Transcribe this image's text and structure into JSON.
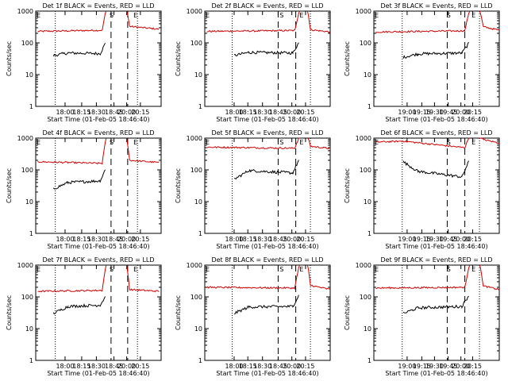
{
  "chart_data": [
    {
      "type": "line",
      "title": "Det 1f BLACK = Events, RED = LLD",
      "xlabel": "Start Time (01-Feb-05 18:46:40)",
      "ylabel": "Counts/sec",
      "yscale": "log",
      "ylim": [
        1,
        1000
      ],
      "yticks": [
        "1",
        "10",
        "100",
        "1000"
      ],
      "xticks": [
        "18:00",
        "18:15",
        "18:30",
        "18:45",
        "20:00",
        "20:15"
      ],
      "markers": [
        "E",
        "S",
        "E"
      ],
      "series": [
        {
          "name": "LLD",
          "color": "#d00000",
          "values": [
            {
              "x0": 0.02,
              "x1": 0.68,
              "v0": 230,
              "v1": 250
            },
            {
              "x0": 0.68,
              "x1": 0.72,
              "v0": 250,
              "v1": 1200
            },
            {
              "x0": 0.93,
              "x1": 0.96,
              "v0": 1200,
              "v1": 330
            },
            {
              "x0": 0.96,
              "x1": 1.26,
              "v0": 330,
              "v1": 270
            }
          ]
        },
        {
          "name": "Events",
          "color": "#000000",
          "values": [
            {
              "x0": 0.18,
              "x1": 0.33,
              "v0": 40,
              "v1": 48
            },
            {
              "x0": 0.33,
              "x1": 0.66,
              "v0": 48,
              "v1": 46
            },
            {
              "x0": 0.66,
              "x1": 0.71,
              "v0": 46,
              "v1": 95
            }
          ]
        }
      ]
    },
    {
      "type": "line",
      "title": "Det 2f BLACK = Events, RED = LLD",
      "xlabel": "Start Time (01-Feb-05 18:46:40)",
      "ylabel": "Counts/sec",
      "yscale": "log",
      "ylim": [
        1,
        1000
      ],
      "yticks": [
        "1",
        "10",
        "100",
        "1000"
      ],
      "xticks": [
        "18:00",
        "18:15",
        "18:30",
        "18:45",
        "20:00",
        "20:15"
      ],
      "markers": [
        "E",
        "S",
        "E"
      ],
      "series": [
        {
          "name": "LLD",
          "color": "#d00000",
          "values": [
            {
              "x0": 0.02,
              "x1": 0.92,
              "v0": 230,
              "v1": 245
            },
            {
              "x0": 0.92,
              "x1": 0.97,
              "v0": 245,
              "v1": 1200
            },
            {
              "x0": 1.05,
              "x1": 1.08,
              "v0": 1200,
              "v1": 260
            },
            {
              "x0": 1.08,
              "x1": 1.3,
              "v0": 260,
              "v1": 220
            }
          ]
        },
        {
          "name": "Events",
          "color": "#000000",
          "values": [
            {
              "x0": 0.3,
              "x1": 0.45,
              "v0": 40,
              "v1": 50
            },
            {
              "x0": 0.45,
              "x1": 0.9,
              "v0": 50,
              "v1": 48
            },
            {
              "x0": 0.9,
              "x1": 0.96,
              "v0": 48,
              "v1": 100
            }
          ]
        }
      ]
    },
    {
      "type": "line",
      "title": "Det 3f BLACK = Events, RED = LLD",
      "xlabel": "Start Time (01-Feb-05 18:46:40)",
      "ylabel": "Counts/sec",
      "yscale": "log",
      "ylim": [
        1,
        1000
      ],
      "yticks": [
        "1",
        "10",
        "100",
        "1000"
      ],
      "xticks": [
        "19:00",
        "19:15",
        "19:30",
        "19:45",
        "20:00",
        "20:15"
      ],
      "markers": [
        "E",
        "S",
        "E"
      ],
      "series": [
        {
          "name": "LLD",
          "color": "#d00000",
          "values": [
            {
              "x0": 0.02,
              "x1": 0.93,
              "v0": 220,
              "v1": 240
            },
            {
              "x0": 0.93,
              "x1": 0.98,
              "v0": 240,
              "v1": 1200
            },
            {
              "x0": 1.08,
              "x1": 1.12,
              "v0": 1200,
              "v1": 320
            },
            {
              "x0": 1.12,
              "x1": 1.32,
              "v0": 320,
              "v1": 250
            }
          ]
        },
        {
          "name": "Events",
          "color": "#000000",
          "values": [
            {
              "x0": 0.3,
              "x1": 0.45,
              "v0": 35,
              "v1": 45
            },
            {
              "x0": 0.45,
              "x1": 0.9,
              "v0": 45,
              "v1": 48
            },
            {
              "x0": 0.9,
              "x1": 0.97,
              "v0": 48,
              "v1": 95
            }
          ]
        }
      ]
    },
    {
      "type": "line",
      "title": "Det 4f BLACK = Events, RED = LLD",
      "xlabel": "Start Time (01-Feb-05 18:46:40)",
      "ylabel": "Counts/sec",
      "yscale": "log",
      "ylim": [
        1,
        1000
      ],
      "yticks": [
        "1",
        "10",
        "100",
        "1000"
      ],
      "xticks": [
        "18:00",
        "18:15",
        "18:30",
        "18:45",
        "20:00",
        "20:15"
      ],
      "markers": [
        "E",
        "S",
        "E"
      ],
      "series": [
        {
          "name": "LLD",
          "color": "#d00000",
          "values": [
            {
              "x0": 0.02,
              "x1": 0.68,
              "v0": 180,
              "v1": 160
            },
            {
              "x0": 0.68,
              "x1": 0.72,
              "v0": 160,
              "v1": 1200
            },
            {
              "x0": 0.93,
              "x1": 0.96,
              "v0": 1200,
              "v1": 200
            },
            {
              "x0": 0.96,
              "x1": 1.26,
              "v0": 200,
              "v1": 170
            }
          ]
        },
        {
          "name": "Events",
          "color": "#000000",
          "values": [
            {
              "x0": 0.18,
              "x1": 0.33,
              "v0": 25,
              "v1": 40
            },
            {
              "x0": 0.33,
              "x1": 0.66,
              "v0": 40,
              "v1": 45
            },
            {
              "x0": 0.66,
              "x1": 0.71,
              "v0": 45,
              "v1": 100
            }
          ]
        }
      ]
    },
    {
      "type": "line",
      "title": "Det 5f BLACK = Events, RED = LLD",
      "xlabel": "Start Time (01-Feb-05 18:46:40)",
      "ylabel": "Counts/sec",
      "yscale": "log",
      "ylim": [
        1,
        1000
      ],
      "yticks": [
        "1",
        "10",
        "100",
        "1000"
      ],
      "xticks": [
        "18:00",
        "18:15",
        "18:30",
        "18:45",
        "20:00",
        "20:15"
      ],
      "markers": [
        "E",
        "S",
        "E"
      ],
      "series": [
        {
          "name": "LLD",
          "color": "#d00000",
          "values": [
            {
              "x0": 0.02,
              "x1": 0.92,
              "v0": 520,
              "v1": 480
            },
            {
              "x0": 0.92,
              "x1": 0.97,
              "v0": 480,
              "v1": 1200
            },
            {
              "x0": 1.05,
              "x1": 1.08,
              "v0": 1200,
              "v1": 550
            },
            {
              "x0": 1.08,
              "x1": 1.3,
              "v0": 550,
              "v1": 470
            }
          ]
        },
        {
          "name": "Events",
          "color": "#000000",
          "values": [
            {
              "x0": 0.3,
              "x1": 0.45,
              "v0": 50,
              "v1": 95
            },
            {
              "x0": 0.45,
              "x1": 0.9,
              "v0": 95,
              "v1": 80
            },
            {
              "x0": 0.9,
              "x1": 0.96,
              "v0": 80,
              "v1": 200
            }
          ]
        }
      ]
    },
    {
      "type": "line",
      "title": "Det 6f BLACK = Events, RED = LLD",
      "xlabel": "Start Time (01-Feb-05 18:46:40)",
      "ylabel": "Counts/sec",
      "yscale": "log",
      "ylim": [
        1,
        1000
      ],
      "yticks": [
        "1",
        "10",
        "100",
        "1000"
      ],
      "xticks": [
        "19:00",
        "19:15",
        "19:30",
        "19:45",
        "20:00",
        "20:15"
      ],
      "markers": [
        "E",
        "S",
        "E"
      ],
      "series": [
        {
          "name": "LLD",
          "color": "#d00000",
          "values": [
            {
              "x0": 0.02,
              "x1": 0.3,
              "v0": 750,
              "v1": 800
            },
            {
              "x0": 0.3,
              "x1": 0.93,
              "v0": 800,
              "v1": 500
            },
            {
              "x0": 0.93,
              "x1": 0.98,
              "v0": 500,
              "v1": 1200
            },
            {
              "x0": 1.08,
              "x1": 1.12,
              "v0": 1200,
              "v1": 900
            },
            {
              "x0": 1.12,
              "x1": 1.32,
              "v0": 900,
              "v1": 700
            }
          ]
        },
        {
          "name": "Events",
          "color": "#000000",
          "values": [
            {
              "x0": 0.3,
              "x1": 0.45,
              "v0": 180,
              "v1": 90
            },
            {
              "x0": 0.45,
              "x1": 0.9,
              "v0": 90,
              "v1": 60
            },
            {
              "x0": 0.9,
              "x1": 0.97,
              "v0": 60,
              "v1": 180
            }
          ]
        }
      ]
    },
    {
      "type": "line",
      "title": "Det 7f BLACK = Events, RED = LLD",
      "xlabel": "Start Time (01-Feb-05 18:46:40)",
      "ylabel": "Counts/sec",
      "yscale": "log",
      "ylim": [
        1,
        1000
      ],
      "yticks": [
        "1",
        "10",
        "100",
        "1000"
      ],
      "xticks": [
        "18:00",
        "18:15",
        "18:30",
        "18:45",
        "20:00",
        "20:15"
      ],
      "markers": [
        "E",
        "S",
        "E"
      ],
      "series": [
        {
          "name": "LLD",
          "color": "#d00000",
          "values": [
            {
              "x0": 0.02,
              "x1": 0.68,
              "v0": 150,
              "v1": 160
            },
            {
              "x0": 0.68,
              "x1": 0.72,
              "v0": 160,
              "v1": 1200
            },
            {
              "x0": 0.93,
              "x1": 0.96,
              "v0": 1200,
              "v1": 170
            },
            {
              "x0": 0.96,
              "x1": 1.26,
              "v0": 170,
              "v1": 150
            }
          ]
        },
        {
          "name": "Events",
          "color": "#000000",
          "values": [
            {
              "x0": 0.18,
              "x1": 0.33,
              "v0": 30,
              "v1": 50
            },
            {
              "x0": 0.33,
              "x1": 0.66,
              "v0": 50,
              "v1": 55
            },
            {
              "x0": 0.66,
              "x1": 0.71,
              "v0": 55,
              "v1": 100
            }
          ]
        }
      ]
    },
    {
      "type": "line",
      "title": "Det 8f BLACK = Events, RED = LLD",
      "xlabel": "Start Time (01-Feb-05 18:46:40)",
      "ylabel": "Counts/sec",
      "yscale": "log",
      "ylim": [
        1,
        1000
      ],
      "yticks": [
        "1",
        "10",
        "100",
        "1000"
      ],
      "xticks": [
        "18:00",
        "18:15",
        "18:30",
        "18:45",
        "20:00",
        "20:15"
      ],
      "markers": [
        "E",
        "S",
        "E"
      ],
      "series": [
        {
          "name": "LLD",
          "color": "#d00000",
          "values": [
            {
              "x0": 0.02,
              "x1": 0.92,
              "v0": 200,
              "v1": 190
            },
            {
              "x0": 0.92,
              "x1": 0.97,
              "v0": 190,
              "v1": 1200
            },
            {
              "x0": 1.05,
              "x1": 1.08,
              "v0": 1200,
              "v1": 230
            },
            {
              "x0": 1.08,
              "x1": 1.3,
              "v0": 230,
              "v1": 170
            }
          ]
        },
        {
          "name": "Events",
          "color": "#000000",
          "values": [
            {
              "x0": 0.3,
              "x1": 0.45,
              "v0": 30,
              "v1": 48
            },
            {
              "x0": 0.45,
              "x1": 0.9,
              "v0": 48,
              "v1": 50
            },
            {
              "x0": 0.9,
              "x1": 0.96,
              "v0": 50,
              "v1": 110
            }
          ]
        }
      ]
    },
    {
      "type": "line",
      "title": "Det 9f BLACK = Events, RED = LLD",
      "xlabel": "Start Time (01-Feb-05 18:46:40)",
      "ylabel": "Counts/sec",
      "yscale": "log",
      "ylim": [
        1,
        1000
      ],
      "yticks": [
        "1",
        "10",
        "100",
        "1000"
      ],
      "xticks": [
        "19:00",
        "19:15",
        "19:30",
        "19:45",
        "20:00",
        "20:15"
      ],
      "markers": [
        "E",
        "S",
        "E"
      ],
      "series": [
        {
          "name": "LLD",
          "color": "#d00000",
          "values": [
            {
              "x0": 0.02,
              "x1": 0.93,
              "v0": 190,
              "v1": 200
            },
            {
              "x0": 0.93,
              "x1": 0.98,
              "v0": 200,
              "v1": 1200
            },
            {
              "x0": 1.08,
              "x1": 1.12,
              "v0": 1200,
              "v1": 220
            },
            {
              "x0": 1.12,
              "x1": 1.32,
              "v0": 220,
              "v1": 170
            }
          ]
        },
        {
          "name": "Events",
          "color": "#000000",
          "values": [
            {
              "x0": 0.3,
              "x1": 0.45,
              "v0": 30,
              "v1": 45
            },
            {
              "x0": 0.45,
              "x1": 0.9,
              "v0": 45,
              "v1": 50
            },
            {
              "x0": 0.9,
              "x1": 0.97,
              "v0": 50,
              "v1": 110
            }
          ]
        }
      ]
    }
  ]
}
